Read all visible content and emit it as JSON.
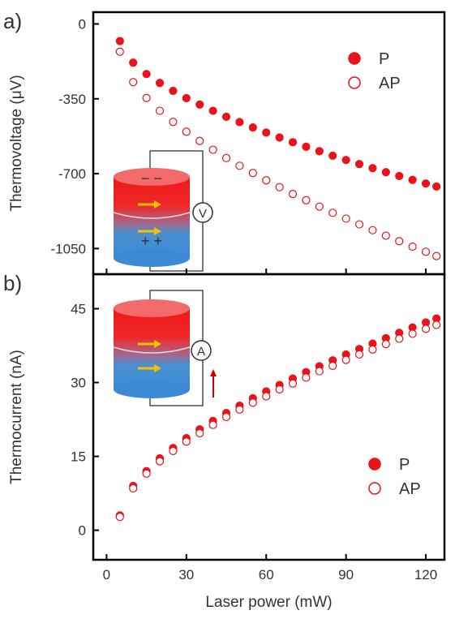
{
  "chart_data": [
    {
      "type": "scatter",
      "panel_label": "a)",
      "y_label": "Thermovoltage (μV)",
      "xlim": [
        -5,
        127
      ],
      "ylim": [
        -1170,
        55
      ],
      "yticks": [
        0,
        -350,
        -700,
        -1050
      ],
      "legend": "top-right",
      "inset": {
        "meter": "V",
        "top_charges": "− −",
        "bottom_charges": "+ +"
      },
      "x": [
        5,
        10,
        15,
        20,
        25,
        30,
        35,
        40,
        45,
        50,
        55,
        60,
        65,
        70,
        75,
        80,
        85,
        90,
        95,
        100,
        105,
        110,
        115,
        120,
        124
      ],
      "series": [
        {
          "name": "P",
          "color": "#e8141a",
          "marker": "filled",
          "values": [
            -80,
            -181,
            -234,
            -276,
            -313,
            -347,
            -377,
            -406,
            -434,
            -459,
            -484,
            -508,
            -531,
            -553,
            -574,
            -595,
            -616,
            -636,
            -655,
            -674,
            -693,
            -711,
            -729,
            -746,
            -760
          ]
        },
        {
          "name": "AP",
          "color": "#e8141a",
          "marker": "open",
          "values": [
            -130,
            -272,
            -346,
            -406,
            -458,
            -504,
            -547,
            -588,
            -627,
            -663,
            -697,
            -731,
            -763,
            -795,
            -824,
            -854,
            -883,
            -910,
            -937,
            -964,
            -990,
            -1016,
            -1041,
            -1065,
            -1085
          ]
        }
      ]
    },
    {
      "type": "scatter",
      "panel_label": "b)",
      "y_label": "Thermocurrent (nA)",
      "x_label": "Laser power (mW)",
      "xlim": [
        -5,
        127
      ],
      "ylim": [
        -6,
        52
      ],
      "xticks": [
        0,
        30,
        60,
        90,
        120
      ],
      "yticks": [
        0,
        15,
        30,
        45
      ],
      "legend": "bottom-right",
      "inset": {
        "meter": "A"
      },
      "x": [
        5,
        10,
        15,
        20,
        25,
        30,
        35,
        40,
        45,
        50,
        55,
        60,
        65,
        70,
        75,
        80,
        85,
        90,
        95,
        100,
        105,
        110,
        115,
        120,
        124
      ],
      "series": [
        {
          "name": "P",
          "color": "#e8141a",
          "marker": "filled",
          "values": [
            3,
            9,
            12,
            14.6,
            16.7,
            18.7,
            20.5,
            22.2,
            23.8,
            25.3,
            26.8,
            28.2,
            29.5,
            30.8,
            32.1,
            33.3,
            34.5,
            35.7,
            36.8,
            37.9,
            39,
            40.1,
            41.2,
            42.2,
            43
          ]
        },
        {
          "name": "AP",
          "color": "#e8141a",
          "marker": "open",
          "values": [
            2.7,
            8.5,
            11.5,
            14,
            16.1,
            18,
            19.7,
            21.4,
            23,
            24.5,
            25.9,
            27.2,
            28.6,
            29.8,
            31,
            32.3,
            33.4,
            34.6,
            35.7,
            36.7,
            37.8,
            38.9,
            39.9,
            40.9,
            41.7
          ]
        }
      ]
    }
  ]
}
